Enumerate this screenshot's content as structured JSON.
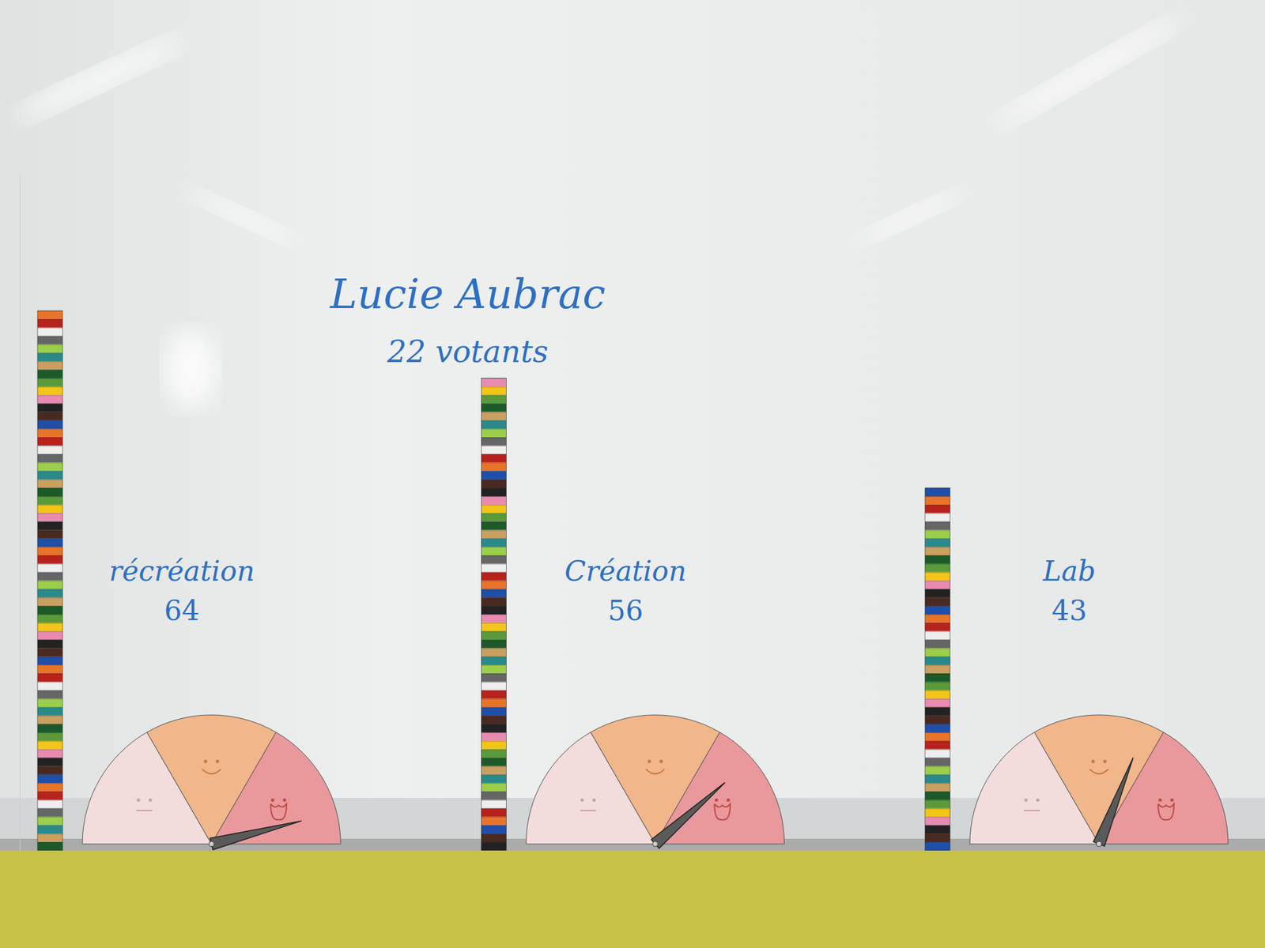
{
  "chart_data": {
    "type": "bar",
    "title": "Lucie Aubrac",
    "subtitle": "22 votants",
    "categories": [
      "récréation",
      "Création",
      "Lab"
    ],
    "values": [
      64,
      56,
      43
    ],
    "data_labels": true,
    "tick_labels": false,
    "ylim": [
      0,
      80
    ],
    "satisfaction": [
      92,
      77,
      62
    ],
    "satisfaction_lim": [
      0,
      100
    ]
  }
}
